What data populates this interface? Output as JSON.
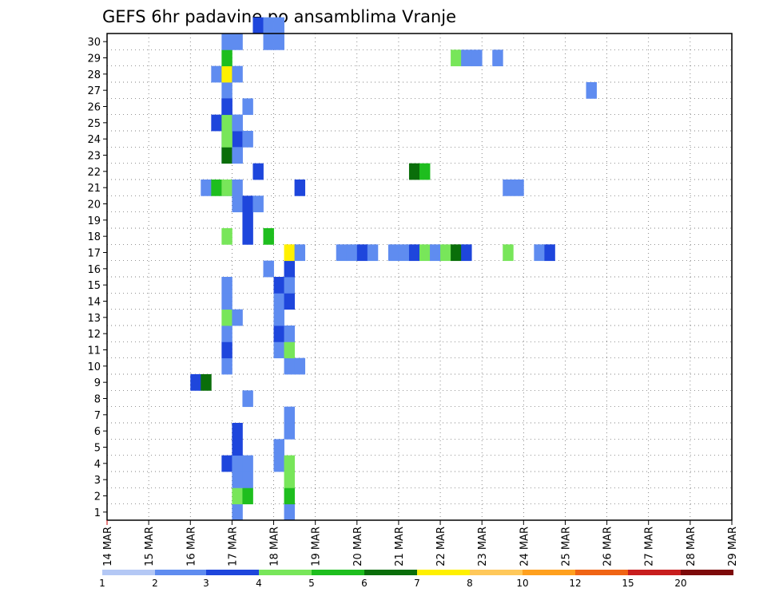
{
  "chart_data": {
    "type": "heatmap",
    "title": "GEFS 6hr padavine po ansamblima Vranje",
    "xlabel": "",
    "ylabel": "",
    "x_ticks": [
      "14 MAR",
      "15 MAR",
      "16 MAR",
      "17 MAR",
      "18 MAR",
      "19 MAR",
      "20 MAR",
      "21 MAR",
      "22 MAR",
      "23 MAR",
      "24 MAR",
      "25 MAR",
      "26 MAR",
      "27 MAR",
      "28 MAR",
      "29 MAR"
    ],
    "y_ticks": [
      "1",
      "2",
      "3",
      "4",
      "5",
      "6",
      "7",
      "8",
      "9",
      "10",
      "11",
      "12",
      "13",
      "14",
      "15",
      "16",
      "17",
      "18",
      "19",
      "20",
      "21",
      "22",
      "23",
      "24",
      "25",
      "26",
      "27",
      "28",
      "29",
      "30"
    ],
    "x_range_steps_6h": [
      0,
      60
    ],
    "y_range_members": [
      0,
      30
    ],
    "grid": "dotted",
    "legend": {
      "placement": "bottom",
      "thresholds": [
        "1",
        "2",
        "3",
        "4",
        "5",
        "6",
        "7",
        "8",
        "10",
        "12",
        "15",
        "20"
      ],
      "colors": [
        "#b4c8f5",
        "#5f8cf0",
        "#1e46dc",
        "#78e65a",
        "#1ebe1e",
        "#0a6e0a",
        "#fff000",
        "#ffc85a",
        "#ffa01e",
        "#f06414",
        "#c81e1e",
        "#7d0a0a",
        "#5a0a0a"
      ]
    },
    "cells": [
      [
        0,
        12,
        1
      ],
      [
        1,
        12,
        3
      ],
      [
        1,
        13,
        4
      ],
      [
        2,
        13,
        1
      ],
      [
        2,
        12,
        1
      ],
      [
        3,
        11,
        2
      ],
      [
        3,
        12,
        1
      ],
      [
        3,
        13,
        1
      ],
      [
        4,
        12,
        2
      ],
      [
        7,
        13,
        1
      ],
      [
        9,
        11,
        1
      ],
      [
        10,
        11,
        2
      ],
      [
        11,
        11,
        1
      ],
      [
        12,
        11,
        3
      ],
      [
        12,
        12,
        1
      ],
      [
        13,
        11,
        1
      ],
      [
        14,
        11,
        1
      ],
      [
        17,
        11,
        3
      ],
      [
        20,
        11,
        1
      ],
      [
        22,
        11,
        1
      ],
      [
        22,
        12,
        1
      ],
      [
        23,
        11,
        1
      ],
      [
        23,
        12,
        2
      ],
      [
        24,
        12,
        1
      ],
      [
        25,
        11,
        2
      ],
      [
        26,
        11,
        1
      ],
      [
        27,
        11,
        1
      ],
      [
        0,
        17,
        1
      ],
      [
        1,
        17,
        4
      ],
      [
        2,
        17,
        3
      ],
      [
        3,
        16,
        1
      ],
      [
        3,
        17,
        3
      ],
      [
        4,
        16,
        1
      ],
      [
        5,
        12,
        2
      ],
      [
        5,
        17,
        1
      ],
      [
        6,
        17,
        1
      ],
      [
        8,
        8,
        2
      ],
      [
        8,
        9,
        5
      ],
      [
        9,
        17,
        1
      ],
      [
        9,
        18,
        1
      ],
      [
        10,
        16,
        1
      ],
      [
        10,
        17,
        3
      ],
      [
        11,
        16,
        2
      ],
      [
        11,
        17,
        1
      ],
      [
        12,
        16,
        1
      ],
      [
        13,
        16,
        1
      ],
      [
        13,
        17,
        2
      ],
      [
        14,
        16,
        2
      ],
      [
        14,
        17,
        1
      ],
      [
        15,
        15,
        1
      ],
      [
        15,
        17,
        2
      ],
      [
        16,
        17,
        6
      ],
      [
        16,
        18,
        1
      ],
      [
        16,
        22,
        1
      ],
      [
        16,
        23,
        1
      ],
      [
        16,
        24,
        2
      ],
      [
        16,
        25,
        1
      ],
      [
        16,
        27,
        1
      ],
      [
        16,
        28,
        1
      ],
      [
        16,
        29,
        2
      ],
      [
        16,
        30,
        3
      ],
      [
        16,
        31,
        1
      ],
      [
        16,
        32,
        3
      ],
      [
        16,
        33,
        5
      ],
      [
        16,
        34,
        2
      ],
      [
        16,
        38,
        3
      ],
      [
        16,
        41,
        1
      ],
      [
        16,
        42,
        2
      ],
      [
        17,
        13,
        2
      ],
      [
        17,
        15,
        4
      ],
      [
        18,
        13,
        2
      ],
      [
        19,
        12,
        1
      ],
      [
        19,
        13,
        2
      ],
      [
        19,
        14,
        1
      ],
      [
        20,
        9,
        1
      ],
      [
        20,
        10,
        4
      ],
      [
        20,
        11,
        3
      ],
      [
        20,
        12,
        1
      ],
      [
        20,
        18,
        2
      ],
      [
        20,
        38,
        1
      ],
      [
        20,
        39,
        1
      ],
      [
        21,
        14,
        2
      ],
      [
        21,
        29,
        5
      ],
      [
        21,
        30,
        4
      ],
      [
        22,
        11,
        5
      ],
      [
        22,
        12,
        1
      ],
      [
        23,
        11,
        3
      ],
      [
        23,
        13,
        1
      ],
      [
        24,
        10,
        2
      ],
      [
        24,
        11,
        3
      ],
      [
        24,
        12,
        1
      ],
      [
        25,
        11,
        2
      ],
      [
        25,
        13,
        1
      ],
      [
        26,
        46,
        1
      ],
      [
        27,
        10,
        1
      ],
      [
        27,
        11,
        6
      ],
      [
        27,
        12,
        1
      ],
      [
        28,
        11,
        4
      ],
      [
        28,
        33,
        3
      ],
      [
        28,
        34,
        1
      ],
      [
        28,
        35,
        1
      ],
      [
        28,
        37,
        1
      ],
      [
        29,
        11,
        1
      ],
      [
        29,
        12,
        1
      ],
      [
        29,
        15,
        1
      ],
      [
        29,
        16,
        1
      ],
      [
        30,
        14,
        2
      ],
      [
        30,
        15,
        1
      ],
      [
        30,
        16,
        1
      ]
    ]
  }
}
